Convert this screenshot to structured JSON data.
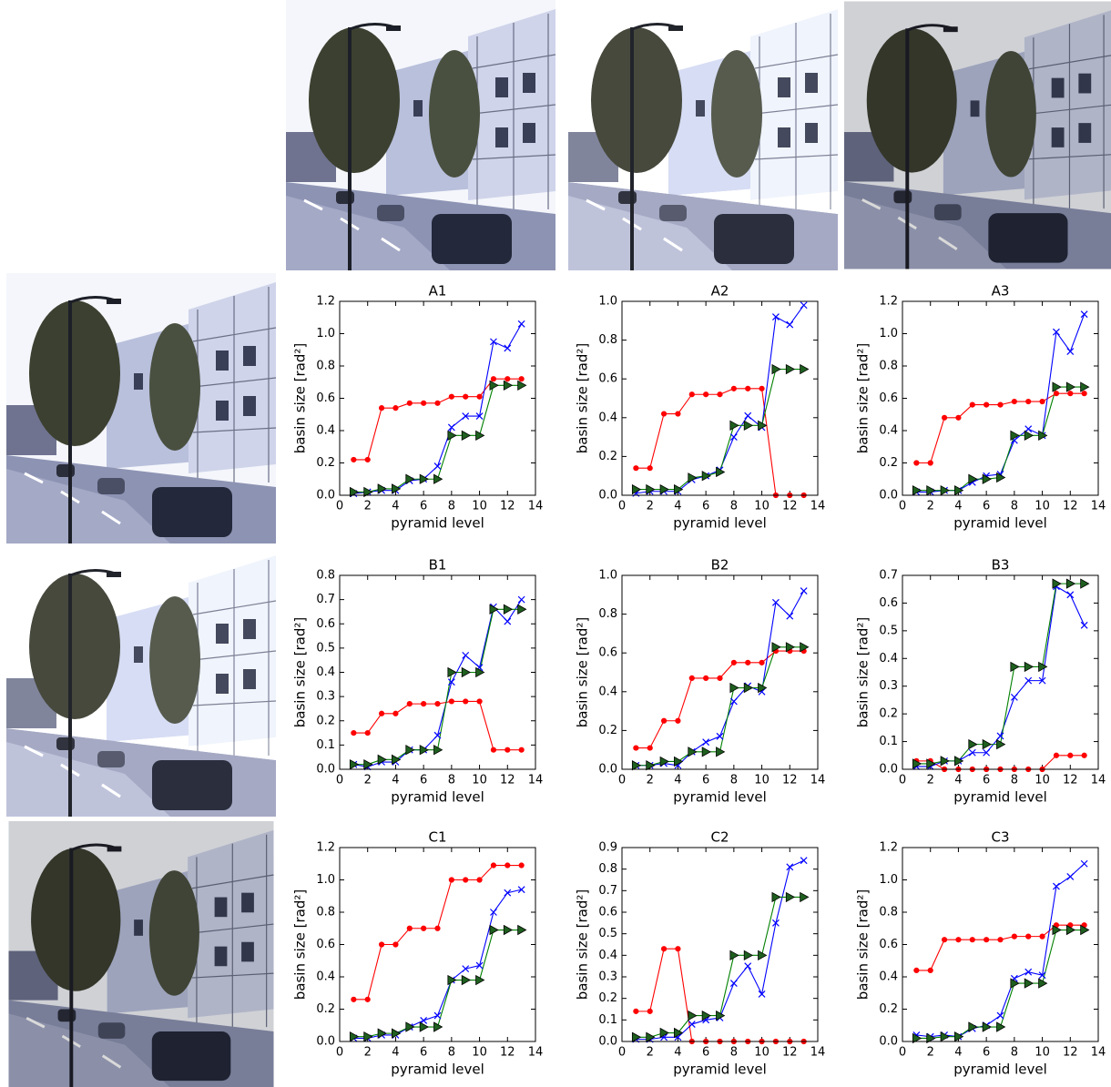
{
  "chart_data": [
    {
      "type": "line",
      "title": "A1",
      "xlabel": "pyramid level",
      "ylabel": "basin size [rad²]",
      "xlim": [
        0,
        14
      ],
      "xticks": [
        0,
        2,
        4,
        6,
        8,
        10,
        12,
        14
      ],
      "ylim": [
        0,
        1.2
      ],
      "yticks": [
        {
          "value": 0,
          "label": "0.0"
        },
        0.2,
        0.4,
        0.6,
        0.8,
        {
          "value": 1,
          "label": "1.0"
        },
        1.2
      ],
      "x": [
        1,
        2,
        3,
        4,
        5,
        6,
        7,
        8,
        9,
        10,
        11,
        12,
        13
      ],
      "series": [
        {
          "color": "#ff0000",
          "marker": "o",
          "values": [
            0.22,
            0.22,
            0.54,
            0.54,
            0.57,
            0.57,
            0.57,
            0.61,
            0.61,
            0.61,
            0.72,
            0.72,
            0.72
          ]
        },
        {
          "color": "#0000ff",
          "marker": "x",
          "values": [
            0.01,
            0.02,
            0.03,
            0.03,
            0.09,
            0.1,
            0.18,
            0.42,
            0.49,
            0.49,
            0.95,
            0.91,
            1.06
          ]
        },
        {
          "color": "#008000",
          "marker": ">",
          "values": [
            0.02,
            0.02,
            0.04,
            0.04,
            0.1,
            0.1,
            0.1,
            0.37,
            0.37,
            0.37,
            0.68,
            0.68,
            0.68
          ]
        }
      ]
    },
    {
      "type": "line",
      "title": "A2",
      "xlabel": "pyramid level",
      "ylabel": "basin size [rad²]",
      "xlim": [
        0,
        14
      ],
      "xticks": [
        0,
        2,
        4,
        6,
        8,
        10,
        12,
        14
      ],
      "ylim": [
        0,
        1
      ],
      "yticks": [
        {
          "value": 0,
          "label": "0.0"
        },
        0.2,
        0.4,
        0.6,
        0.8,
        {
          "value": 1,
          "label": "1.0"
        }
      ],
      "x": [
        1,
        2,
        3,
        4,
        5,
        6,
        7,
        8,
        9,
        10,
        11,
        12,
        13
      ],
      "series": [
        {
          "color": "#ff0000",
          "marker": "o",
          "values": [
            0.14,
            0.14,
            0.42,
            0.42,
            0.52,
            0.52,
            0.52,
            0.55,
            0.55,
            0.55,
            0,
            0,
            0
          ]
        },
        {
          "color": "#0000ff",
          "marker": "x",
          "values": [
            0.01,
            0.02,
            0.02,
            0.02,
            0.08,
            0.1,
            0.13,
            0.3,
            0.41,
            0.35,
            0.92,
            0.88,
            0.98
          ]
        },
        {
          "color": "#008000",
          "marker": ">",
          "values": [
            0.03,
            0.03,
            0.03,
            0.03,
            0.09,
            0.1,
            0.12,
            0.36,
            0.36,
            0.36,
            0.65,
            0.65,
            0.65
          ]
        }
      ]
    },
    {
      "type": "line",
      "title": "A3",
      "xlabel": "pyramid level",
      "ylabel": "basin size [rad²]",
      "xlim": [
        0,
        14
      ],
      "xticks": [
        0,
        2,
        4,
        6,
        8,
        10,
        12,
        14
      ],
      "ylim": [
        0,
        1.2
      ],
      "yticks": [
        {
          "value": 0,
          "label": "0.0"
        },
        0.2,
        0.4,
        0.6,
        0.8,
        {
          "value": 1,
          "label": "1.0"
        },
        1.2
      ],
      "x": [
        1,
        2,
        3,
        4,
        5,
        6,
        7,
        8,
        9,
        10,
        11,
        12,
        13
      ],
      "series": [
        {
          "color": "#ff0000",
          "marker": "o",
          "values": [
            0.2,
            0.2,
            0.48,
            0.48,
            0.56,
            0.56,
            0.56,
            0.58,
            0.58,
            0.58,
            0.63,
            0.63,
            0.63
          ]
        },
        {
          "color": "#0000ff",
          "marker": "x",
          "values": [
            0.02,
            0.02,
            0.03,
            0.03,
            0.08,
            0.12,
            0.13,
            0.34,
            0.41,
            0.37,
            1.01,
            0.89,
            1.12
          ]
        },
        {
          "color": "#008000",
          "marker": ">",
          "values": [
            0.03,
            0.03,
            0.03,
            0.03,
            0.1,
            0.1,
            0.11,
            0.37,
            0.37,
            0.37,
            0.67,
            0.67,
            0.67
          ]
        }
      ]
    },
    {
      "type": "line",
      "title": "B1",
      "xlabel": "pyramid level",
      "ylabel": "basin size [rad²]",
      "xlim": [
        0,
        14
      ],
      "xticks": [
        0,
        2,
        4,
        6,
        8,
        10,
        12,
        14
      ],
      "ylim": [
        0,
        0.8
      ],
      "yticks": [
        {
          "value": 0,
          "label": "0.0"
        },
        0.1,
        0.2,
        0.3,
        0.4,
        0.5,
        0.6,
        0.7,
        0.8
      ],
      "x": [
        1,
        2,
        3,
        4,
        5,
        6,
        7,
        8,
        9,
        10,
        11,
        12,
        13
      ],
      "series": [
        {
          "color": "#ff0000",
          "marker": "o",
          "values": [
            0.15,
            0.15,
            0.23,
            0.23,
            0.27,
            0.27,
            0.27,
            0.28,
            0.28,
            0.28,
            0.08,
            0.08,
            0.08
          ]
        },
        {
          "color": "#0000ff",
          "marker": "x",
          "values": [
            0.02,
            0.01,
            0.03,
            0.03,
            0.08,
            0.08,
            0.14,
            0.36,
            0.47,
            0.42,
            0.67,
            0.61,
            0.7
          ]
        },
        {
          "color": "#008000",
          "marker": ">",
          "values": [
            0.02,
            0.02,
            0.04,
            0.04,
            0.08,
            0.08,
            0.08,
            0.4,
            0.4,
            0.4,
            0.66,
            0.66,
            0.66
          ]
        }
      ]
    },
    {
      "type": "line",
      "title": "B2",
      "xlabel": "pyramid level",
      "ylabel": "basin size [rad²]",
      "xlim": [
        0,
        14
      ],
      "xticks": [
        0,
        2,
        4,
        6,
        8,
        10,
        12,
        14
      ],
      "ylim": [
        0,
        1
      ],
      "yticks": [
        {
          "value": 0,
          "label": "0.0"
        },
        0.2,
        0.4,
        0.6,
        0.8,
        {
          "value": 1,
          "label": "1.0"
        }
      ],
      "x": [
        1,
        2,
        3,
        4,
        5,
        6,
        7,
        8,
        9,
        10,
        11,
        12,
        13
      ],
      "series": [
        {
          "color": "#ff0000",
          "marker": "o",
          "values": [
            0.11,
            0.11,
            0.25,
            0.25,
            0.47,
            0.47,
            0.47,
            0.55,
            0.55,
            0.55,
            0.61,
            0.61,
            0.61
          ]
        },
        {
          "color": "#0000ff",
          "marker": "x",
          "values": [
            0.02,
            0.02,
            0.03,
            0.02,
            0.09,
            0.14,
            0.17,
            0.35,
            0.43,
            0.4,
            0.86,
            0.79,
            0.92
          ]
        },
        {
          "color": "#008000",
          "marker": ">",
          "values": [
            0.02,
            0.02,
            0.04,
            0.04,
            0.09,
            0.09,
            0.09,
            0.42,
            0.42,
            0.42,
            0.63,
            0.63,
            0.63
          ]
        }
      ]
    },
    {
      "type": "line",
      "title": "B3",
      "xlabel": "pyramid level",
      "ylabel": "basin size [rad²]",
      "xlim": [
        0,
        14
      ],
      "xticks": [
        0,
        2,
        4,
        6,
        8,
        10,
        12,
        14
      ],
      "ylim": [
        0,
        0.7
      ],
      "yticks": [
        {
          "value": 0,
          "label": "0.0"
        },
        0.1,
        0.2,
        0.3,
        0.4,
        0.5,
        0.6,
        0.7
      ],
      "x": [
        1,
        2,
        3,
        4,
        5,
        6,
        7,
        8,
        9,
        10,
        11,
        12,
        13
      ],
      "series": [
        {
          "color": "#ff0000",
          "marker": "o",
          "values": [
            0.03,
            0.03,
            0,
            0,
            0,
            0,
            0,
            0,
            0,
            0,
            0.05,
            0.05,
            0.05
          ]
        },
        {
          "color": "#0000ff",
          "marker": "x",
          "values": [
            0.01,
            0.01,
            0.03,
            0.03,
            0.06,
            0.06,
            0.12,
            0.26,
            0.32,
            0.32,
            0.66,
            0.63,
            0.52
          ]
        },
        {
          "color": "#008000",
          "marker": ">",
          "values": [
            0.02,
            0.02,
            0.03,
            0.03,
            0.09,
            0.09,
            0.09,
            0.37,
            0.37,
            0.37,
            0.67,
            0.67,
            0.67
          ]
        }
      ]
    },
    {
      "type": "line",
      "title": "C1",
      "xlabel": "pyramid level",
      "ylabel": "basin size [rad²]",
      "xlim": [
        0,
        14
      ],
      "xticks": [
        0,
        2,
        4,
        6,
        8,
        10,
        12,
        14
      ],
      "ylim": [
        0,
        1.2
      ],
      "yticks": [
        {
          "value": 0,
          "label": "0.0"
        },
        0.2,
        0.4,
        0.6,
        0.8,
        {
          "value": 1,
          "label": "1.0"
        },
        1.2
      ],
      "x": [
        1,
        2,
        3,
        4,
        5,
        6,
        7,
        8,
        9,
        10,
        11,
        12,
        13
      ],
      "series": [
        {
          "color": "#ff0000",
          "marker": "o",
          "values": [
            0.26,
            0.26,
            0.6,
            0.6,
            0.7,
            0.7,
            0.7,
            1.0,
            1.0,
            1.0,
            1.09,
            1.09,
            1.09
          ]
        },
        {
          "color": "#0000ff",
          "marker": "x",
          "values": [
            0.02,
            0.02,
            0.04,
            0.04,
            0.09,
            0.13,
            0.16,
            0.38,
            0.45,
            0.47,
            0.8,
            0.92,
            0.94
          ]
        },
        {
          "color": "#008000",
          "marker": ">",
          "values": [
            0.03,
            0.03,
            0.05,
            0.05,
            0.09,
            0.09,
            0.09,
            0.38,
            0.38,
            0.38,
            0.69,
            0.69,
            0.69
          ]
        }
      ]
    },
    {
      "type": "line",
      "title": "C2",
      "xlabel": "pyramid level",
      "ylabel": "basin size [rad²]",
      "xlim": [
        0,
        14
      ],
      "xticks": [
        0,
        2,
        4,
        6,
        8,
        10,
        12,
        14
      ],
      "ylim": [
        0,
        0.9
      ],
      "yticks": [
        {
          "value": 0,
          "label": "0.0"
        },
        0.1,
        0.2,
        0.3,
        0.4,
        0.5,
        0.6,
        0.7,
        0.8,
        0.9
      ],
      "x": [
        1,
        2,
        3,
        4,
        5,
        6,
        7,
        8,
        9,
        10,
        11,
        12,
        13
      ],
      "series": [
        {
          "color": "#ff0000",
          "marker": "o",
          "values": [
            0.14,
            0.14,
            0.43,
            0.43,
            0,
            0,
            0,
            0,
            0,
            0,
            0,
            0,
            0
          ]
        },
        {
          "color": "#0000ff",
          "marker": "x",
          "values": [
            0.01,
            0.01,
            0.02,
            0.02,
            0.08,
            0.1,
            0.11,
            0.27,
            0.35,
            0.22,
            0.55,
            0.81,
            0.84
          ]
        },
        {
          "color": "#008000",
          "marker": ">",
          "values": [
            0.02,
            0.02,
            0.04,
            0.04,
            0.12,
            0.12,
            0.12,
            0.4,
            0.4,
            0.4,
            0.67,
            0.67,
            0.67
          ]
        }
      ]
    },
    {
      "type": "line",
      "title": "C3",
      "xlabel": "pyramid level",
      "ylabel": "basin size [rad²]",
      "xlim": [
        0,
        14
      ],
      "xticks": [
        0,
        2,
        4,
        6,
        8,
        10,
        12,
        14
      ],
      "ylim": [
        0,
        1.2
      ],
      "yticks": [
        {
          "value": 0,
          "label": "0.0"
        },
        0.2,
        0.4,
        0.6,
        0.8,
        {
          "value": 1,
          "label": "1.0"
        },
        1.2
      ],
      "x": [
        1,
        2,
        3,
        4,
        5,
        6,
        7,
        8,
        9,
        10,
        11,
        12,
        13
      ],
      "series": [
        {
          "color": "#ff0000",
          "marker": "o",
          "values": [
            0.44,
            0.44,
            0.63,
            0.63,
            0.63,
            0.63,
            0.63,
            0.65,
            0.65,
            0.65,
            0.72,
            0.72,
            0.72
          ]
        },
        {
          "color": "#0000ff",
          "marker": "x",
          "values": [
            0.04,
            0.03,
            0.04,
            0.03,
            0.08,
            0.1,
            0.16,
            0.39,
            0.43,
            0.41,
            0.96,
            1.02,
            1.1
          ]
        },
        {
          "color": "#008000",
          "marker": ">",
          "values": [
            0.02,
            0.02,
            0.03,
            0.03,
            0.09,
            0.09,
            0.09,
            0.36,
            0.36,
            0.36,
            0.69,
            0.69,
            0.69
          ]
        }
      ]
    }
  ]
}
